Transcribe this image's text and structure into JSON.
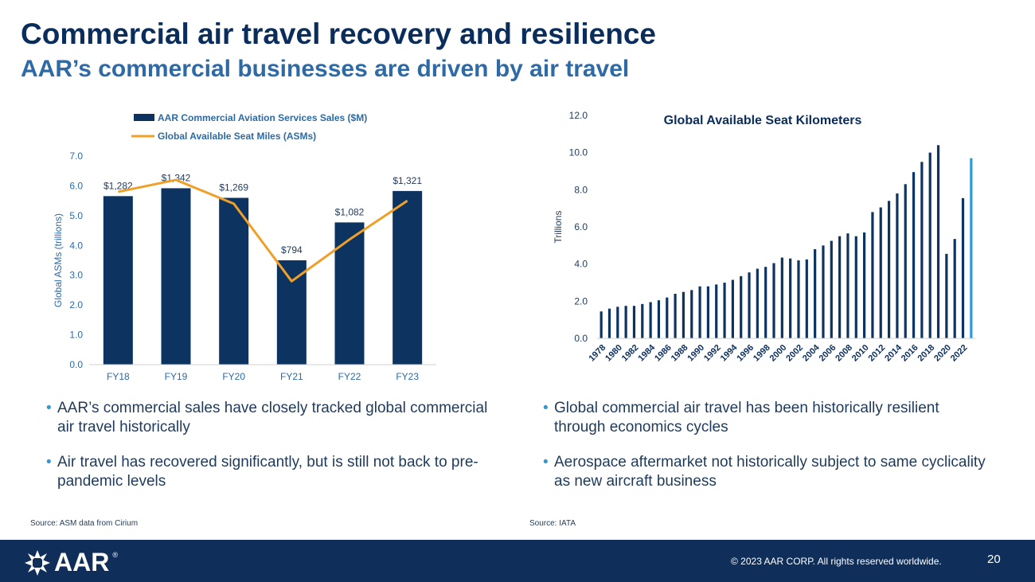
{
  "header": {
    "title": "Commercial air travel recovery and resilience",
    "subtitle": "AAR’s commercial businesses are driven by air travel"
  },
  "colors": {
    "navy": "#0f2f5a",
    "bar": "#0d3461",
    "line": "#f0a028",
    "accent_bar": "#2d9ad6",
    "axis_text": "#2d6aa6"
  },
  "chart_data": [
    {
      "type": "bar",
      "categories": [
        "FY18",
        "FY19",
        "FY20",
        "FY21",
        "FY22",
        "FY23"
      ],
      "series": [
        {
          "name": "AAR Commercial Aviation Services Sales ($M)",
          "type": "bar",
          "values": [
            1282,
            1342,
            1269,
            794,
            1082,
            1321
          ],
          "labels": [
            "$1,282",
            "$1,342",
            "$1,269",
            "$794",
            "$1,082",
            "$1,321"
          ]
        },
        {
          "name": "Global Available Seat Miles (ASMs)",
          "type": "line",
          "values": [
            5.8,
            6.2,
            5.4,
            2.8,
            4.2,
            5.5
          ]
        }
      ],
      "title": "",
      "xlabel": "",
      "ylabel": "Global ASMs (trillions)",
      "ylim": [
        0,
        7
      ],
      "yticks": [
        "0.0",
        "1.0",
        "2.0",
        "3.0",
        "4.0",
        "5.0",
        "6.0",
        "7.0"
      ],
      "legend": "top-left",
      "grid": false
    },
    {
      "type": "bar",
      "title": "Global Available Seat Kilometers",
      "ylabel": "Trillions",
      "xlabel": "",
      "ylim": [
        0,
        12
      ],
      "yticks": [
        "0.0",
        "2.0",
        "4.0",
        "6.0",
        "8.0",
        "10.0",
        "12.0"
      ],
      "x": [
        1978,
        1979,
        1980,
        1981,
        1982,
        1983,
        1984,
        1985,
        1986,
        1987,
        1988,
        1989,
        1990,
        1991,
        1992,
        1993,
        1994,
        1995,
        1996,
        1997,
        1998,
        1999,
        2000,
        2001,
        2002,
        2003,
        2004,
        2005,
        2006,
        2007,
        2008,
        2009,
        2010,
        2011,
        2012,
        2013,
        2014,
        2015,
        2016,
        2017,
        2018,
        2019,
        2020,
        2021,
        2022,
        2023
      ],
      "values": [
        1.45,
        1.6,
        1.7,
        1.75,
        1.75,
        1.85,
        1.95,
        2.05,
        2.2,
        2.4,
        2.5,
        2.6,
        2.8,
        2.8,
        2.9,
        3.0,
        3.15,
        3.35,
        3.55,
        3.75,
        3.85,
        4.05,
        4.35,
        4.3,
        4.2,
        4.25,
        4.8,
        5.0,
        5.25,
        5.5,
        5.65,
        5.5,
        5.7,
        6.8,
        7.05,
        7.4,
        7.8,
        8.3,
        8.95,
        9.5,
        10.0,
        10.4,
        4.55,
        5.35,
        7.55,
        9.7
      ],
      "xticks": [
        "1978",
        "1980",
        "1982",
        "1984",
        "1986",
        "1988",
        "1990",
        "1992",
        "1994",
        "1996",
        "1998",
        "2000",
        "2002",
        "2004",
        "2006",
        "2008",
        "2010",
        "2012",
        "2014",
        "2016",
        "2018",
        "2020",
        "2022"
      ],
      "highlight_last": true,
      "grid": false
    }
  ],
  "bullets_left": [
    "AAR’s commercial sales have closely tracked global commercial air travel historically",
    "Air travel has recovered significantly, but is still not back to pre-pandemic levels"
  ],
  "bullets_right": [
    "Global commercial air travel has been historically resilient through economics cycles",
    "Aerospace aftermarket not historically subject to same cyclicality as new aircraft business"
  ],
  "sources": {
    "left": "Source: ASM data from Cirium",
    "right": "Source: IATA"
  },
  "footer": {
    "logo_text": "AAR",
    "registered": "®",
    "copyright": "© 2023 AAR CORP. All rights reserved worldwide.",
    "page_number": "20"
  }
}
